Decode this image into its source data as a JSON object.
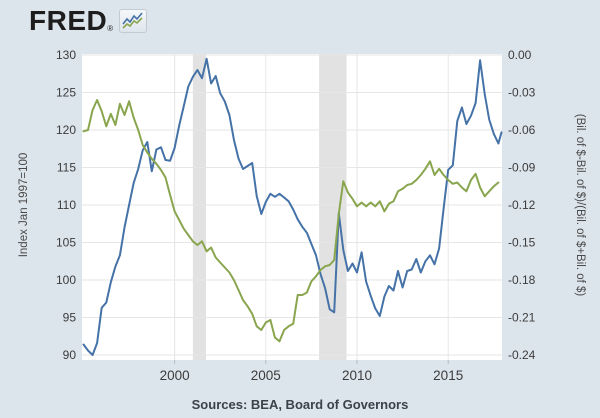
{
  "header": {
    "logo_text": "FRED",
    "registered_mark": "®"
  },
  "source_note": "Sources: BEA, Board of Governors",
  "colors": {
    "background": "#dce4ec",
    "plot_bg": "#ffffff",
    "gridline": "#e6e6e6",
    "recession_band": "#e2e2e2",
    "tick_text": "#3c3c3c",
    "axis_title_text": "#4a4a4a",
    "tick_mark": "#b4bcc4",
    "series_blue": "#4572a7",
    "series_green": "#89a54e"
  },
  "chart_data": {
    "type": "line",
    "title": "",
    "grid": "on",
    "legend_position": "none",
    "left_axis": {
      "label": "Index Jan 1997=100",
      "range": [
        90,
        130
      ],
      "ticks": [
        130,
        125,
        120,
        115,
        110,
        105,
        100,
        95,
        90
      ]
    },
    "right_axis": {
      "label": "(Bil. of $-Bil. of $)/(Bil. of $+Bil. of $)",
      "range": [
        -0.24,
        0
      ],
      "ticks": [
        0.0,
        -0.03,
        -0.06,
        -0.09,
        -0.12,
        -0.15,
        -0.18,
        -0.21,
        -0.24
      ]
    },
    "x_axis": {
      "range": [
        1994.92,
        2017.95
      ],
      "ticks": [
        2000,
        2005,
        2010,
        2015
      ]
    },
    "recession_bands": [
      [
        2001.0,
        2001.72
      ],
      [
        2007.92,
        2009.42
      ]
    ],
    "series": [
      {
        "name": "index-jan-1997-100",
        "axis": "left",
        "color_key": "series_blue",
        "points": [
          [
            1995.0,
            91.4
          ],
          [
            1995.25,
            90.6
          ],
          [
            1995.5,
            90.0
          ],
          [
            1995.75,
            91.6
          ],
          [
            1996.0,
            96.3
          ],
          [
            1996.25,
            97.0
          ],
          [
            1996.5,
            99.7
          ],
          [
            1996.75,
            101.8
          ],
          [
            1997.0,
            103.3
          ],
          [
            1997.25,
            107.0
          ],
          [
            1997.5,
            110.0
          ],
          [
            1997.75,
            112.9
          ],
          [
            1998.0,
            114.8
          ],
          [
            1998.25,
            117.3
          ],
          [
            1998.5,
            118.4
          ],
          [
            1998.75,
            114.5
          ],
          [
            1999.0,
            117.4
          ],
          [
            1999.25,
            117.7
          ],
          [
            1999.5,
            116.0
          ],
          [
            1999.75,
            115.9
          ],
          [
            2000.0,
            117.6
          ],
          [
            2000.25,
            120.6
          ],
          [
            2000.5,
            123.2
          ],
          [
            2000.75,
            125.8
          ],
          [
            2001.0,
            127.1
          ],
          [
            2001.25,
            128.0
          ],
          [
            2001.5,
            126.9
          ],
          [
            2001.75,
            129.5
          ],
          [
            2002.0,
            126.2
          ],
          [
            2002.25,
            127.2
          ],
          [
            2002.5,
            124.9
          ],
          [
            2002.75,
            123.8
          ],
          [
            2003.0,
            122.0
          ],
          [
            2003.25,
            118.7
          ],
          [
            2003.5,
            116.2
          ],
          [
            2003.75,
            114.8
          ],
          [
            2004.0,
            115.2
          ],
          [
            2004.25,
            115.6
          ],
          [
            2004.5,
            111.2
          ],
          [
            2004.75,
            108.8
          ],
          [
            2005.0,
            110.4
          ],
          [
            2005.25,
            111.5
          ],
          [
            2005.5,
            111.1
          ],
          [
            2005.75,
            111.5
          ],
          [
            2006.0,
            111.0
          ],
          [
            2006.25,
            110.5
          ],
          [
            2006.5,
            109.4
          ],
          [
            2006.75,
            108.1
          ],
          [
            2007.0,
            107.1
          ],
          [
            2007.25,
            106.3
          ],
          [
            2007.5,
            104.8
          ],
          [
            2007.75,
            103.3
          ],
          [
            2008.0,
            100.8
          ],
          [
            2008.25,
            98.9
          ],
          [
            2008.5,
            96.1
          ],
          [
            2008.75,
            95.7
          ],
          [
            2009.0,
            108.9
          ],
          [
            2009.25,
            104.0
          ],
          [
            2009.5,
            101.2
          ],
          [
            2009.75,
            102.2
          ],
          [
            2010.0,
            101.0
          ],
          [
            2010.25,
            103.7
          ],
          [
            2010.5,
            99.8
          ],
          [
            2010.75,
            97.9
          ],
          [
            2011.0,
            96.2
          ],
          [
            2011.25,
            95.2
          ],
          [
            2011.5,
            97.8
          ],
          [
            2011.75,
            99.2
          ],
          [
            2012.0,
            98.6
          ],
          [
            2012.25,
            101.2
          ],
          [
            2012.5,
            99.0
          ],
          [
            2012.75,
            101.2
          ],
          [
            2013.0,
            101.4
          ],
          [
            2013.25,
            102.8
          ],
          [
            2013.5,
            101.0
          ],
          [
            2013.75,
            102.5
          ],
          [
            2014.0,
            103.3
          ],
          [
            2014.25,
            102.1
          ],
          [
            2014.5,
            104.2
          ],
          [
            2014.75,
            109.5
          ],
          [
            2015.0,
            114.7
          ],
          [
            2015.25,
            115.3
          ],
          [
            2015.5,
            121.2
          ],
          [
            2015.75,
            123.0
          ],
          [
            2016.0,
            120.8
          ],
          [
            2016.25,
            121.9
          ],
          [
            2016.5,
            123.6
          ],
          [
            2016.75,
            129.3
          ],
          [
            2017.0,
            124.8
          ],
          [
            2017.25,
            121.4
          ],
          [
            2017.5,
            119.5
          ],
          [
            2017.75,
            118.2
          ],
          [
            2017.92,
            119.7
          ]
        ]
      },
      {
        "name": "trade-balance-ratio",
        "axis": "right",
        "color_key": "series_green",
        "points": [
          [
            1995.0,
            -0.061
          ],
          [
            1995.25,
            -0.06
          ],
          [
            1995.5,
            -0.044
          ],
          [
            1995.75,
            -0.036
          ],
          [
            1996.0,
            -0.045
          ],
          [
            1996.25,
            -0.057
          ],
          [
            1996.5,
            -0.047
          ],
          [
            1996.75,
            -0.056
          ],
          [
            1997.0,
            -0.039
          ],
          [
            1997.25,
            -0.048
          ],
          [
            1997.5,
            -0.037
          ],
          [
            1997.75,
            -0.05
          ],
          [
            1998.0,
            -0.06
          ],
          [
            1998.25,
            -0.072
          ],
          [
            1998.5,
            -0.078
          ],
          [
            1998.75,
            -0.083
          ],
          [
            1999.0,
            -0.087
          ],
          [
            1999.25,
            -0.092
          ],
          [
            1999.5,
            -0.098
          ],
          [
            1999.75,
            -0.112
          ],
          [
            2000.0,
            -0.125
          ],
          [
            2000.25,
            -0.132
          ],
          [
            2000.5,
            -0.139
          ],
          [
            2000.75,
            -0.144
          ],
          [
            2001.0,
            -0.149
          ],
          [
            2001.25,
            -0.152
          ],
          [
            2001.5,
            -0.149
          ],
          [
            2001.75,
            -0.157
          ],
          [
            2002.0,
            -0.154
          ],
          [
            2002.25,
            -0.162
          ],
          [
            2002.5,
            -0.166
          ],
          [
            2002.75,
            -0.17
          ],
          [
            2003.0,
            -0.174
          ],
          [
            2003.25,
            -0.18
          ],
          [
            2003.5,
            -0.188
          ],
          [
            2003.75,
            -0.196
          ],
          [
            2004.0,
            -0.201
          ],
          [
            2004.25,
            -0.207
          ],
          [
            2004.5,
            -0.217
          ],
          [
            2004.75,
            -0.22
          ],
          [
            2005.0,
            -0.214
          ],
          [
            2005.25,
            -0.212
          ],
          [
            2005.5,
            -0.226
          ],
          [
            2005.75,
            -0.229
          ],
          [
            2006.0,
            -0.22
          ],
          [
            2006.25,
            -0.217
          ],
          [
            2006.5,
            -0.215
          ],
          [
            2006.75,
            -0.192
          ],
          [
            2007.0,
            -0.192
          ],
          [
            2007.25,
            -0.19
          ],
          [
            2007.5,
            -0.181
          ],
          [
            2007.75,
            -0.177
          ],
          [
            2008.0,
            -0.172
          ],
          [
            2008.25,
            -0.169
          ],
          [
            2008.5,
            -0.168
          ],
          [
            2008.75,
            -0.164
          ],
          [
            2009.0,
            -0.127
          ],
          [
            2009.25,
            -0.101
          ],
          [
            2009.5,
            -0.11
          ],
          [
            2009.75,
            -0.115
          ],
          [
            2010.0,
            -0.121
          ],
          [
            2010.25,
            -0.118
          ],
          [
            2010.5,
            -0.121
          ],
          [
            2010.75,
            -0.118
          ],
          [
            2011.0,
            -0.121
          ],
          [
            2011.25,
            -0.117
          ],
          [
            2011.5,
            -0.125
          ],
          [
            2011.75,
            -0.119
          ],
          [
            2012.0,
            -0.117
          ],
          [
            2012.25,
            -0.109
          ],
          [
            2012.5,
            -0.107
          ],
          [
            2012.75,
            -0.104
          ],
          [
            2013.0,
            -0.103
          ],
          [
            2013.25,
            -0.1
          ],
          [
            2013.5,
            -0.096
          ],
          [
            2013.75,
            -0.091
          ],
          [
            2014.0,
            -0.085
          ],
          [
            2014.25,
            -0.096
          ],
          [
            2014.5,
            -0.091
          ],
          [
            2014.75,
            -0.096
          ],
          [
            2015.0,
            -0.1
          ],
          [
            2015.25,
            -0.103
          ],
          [
            2015.5,
            -0.102
          ],
          [
            2015.75,
            -0.106
          ],
          [
            2016.0,
            -0.109
          ],
          [
            2016.25,
            -0.1
          ],
          [
            2016.5,
            -0.095
          ],
          [
            2016.75,
            -0.106
          ],
          [
            2017.0,
            -0.113
          ],
          [
            2017.25,
            -0.109
          ],
          [
            2017.5,
            -0.105
          ],
          [
            2017.75,
            -0.102
          ]
        ]
      }
    ]
  }
}
